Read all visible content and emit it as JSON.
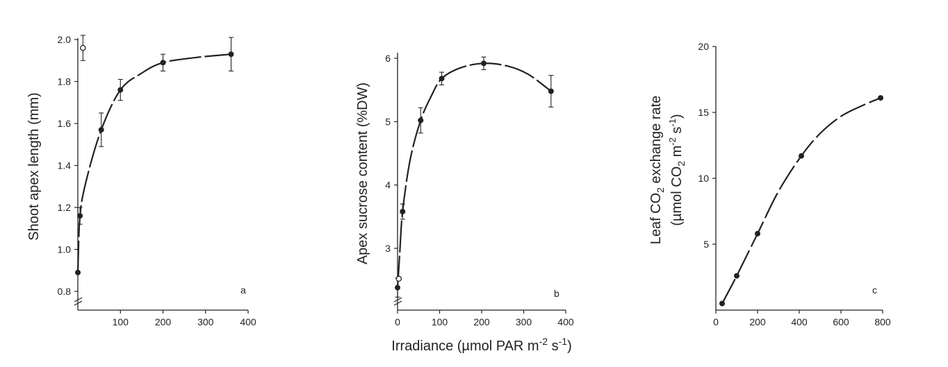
{
  "figure": {
    "shared_xlabel": "Irradiance (µmol PAR m",
    "shared_xlabel_exp1": "-2",
    "shared_xlabel_mid": " s",
    "shared_xlabel_exp2": "-1",
    "shared_xlabel_end": ")"
  },
  "chart_data": [
    {
      "type": "scatter",
      "panel_label": "a",
      "ylabel": "Shoot apex length (mm)",
      "xlim": [
        0,
        400
      ],
      "ylim": [
        0.8,
        2.0
      ],
      "x_ticks": [
        100,
        200,
        300,
        400
      ],
      "y_ticks": [
        0.8,
        1.0,
        1.2,
        1.4,
        1.6,
        1.8,
        2.0
      ],
      "y_tick_labels": [
        "0.8",
        "1.0",
        "1.2",
        "1.4",
        "1.6",
        "1.8",
        "2.0"
      ],
      "axis_break": true,
      "series": [
        {
          "marker": "filled",
          "x": [
            0,
            5,
            55,
            100,
            200,
            360
          ],
          "y": [
            0.89,
            1.16,
            1.57,
            1.76,
            1.89,
            1.93
          ],
          "err": [
            0,
            0.04,
            0.08,
            0.05,
            0.04,
            0.08
          ]
        },
        {
          "marker": "open",
          "x": [
            12
          ],
          "y": [
            1.96
          ],
          "err": [
            0.06
          ]
        }
      ],
      "curve": {
        "x": [
          0,
          5,
          20,
          55,
          100,
          150,
          200,
          280,
          360
        ],
        "y": [
          0.89,
          1.16,
          1.33,
          1.57,
          1.76,
          1.84,
          1.89,
          1.915,
          1.93
        ]
      }
    },
    {
      "type": "scatter",
      "panel_label": "b",
      "ylabel": "Apex sucrose content (%DW)",
      "xlim": [
        0,
        400
      ],
      "ylim": [
        2.2,
        6.0
      ],
      "x_ticks": [
        0,
        100,
        200,
        300,
        400
      ],
      "y_ticks": [
        3,
        4,
        5,
        6
      ],
      "y_tick_labels": [
        "3",
        "4",
        "5",
        "6"
      ],
      "axis_break": true,
      "series": [
        {
          "marker": "filled",
          "x": [
            0,
            12,
            55,
            105,
            205,
            365
          ],
          "y": [
            2.38,
            3.58,
            5.02,
            5.68,
            5.92,
            5.48
          ],
          "err": [
            0.15,
            0.12,
            0.2,
            0.1,
            0.1,
            0.25
          ]
        },
        {
          "marker": "open",
          "x": [
            3
          ],
          "y": [
            2.52
          ],
          "err": [
            0
          ]
        }
      ],
      "curve": {
        "x": [
          0,
          5,
          12,
          30,
          55,
          80,
          105,
          150,
          205,
          260,
          310,
          365
        ],
        "y": [
          2.38,
          2.9,
          3.58,
          4.4,
          5.02,
          5.4,
          5.68,
          5.85,
          5.92,
          5.88,
          5.75,
          5.48
        ]
      }
    },
    {
      "type": "scatter",
      "panel_label": "c",
      "ylabel": "Leaf CO",
      "ylabel_sub": "2",
      "ylabel_rest": " exchange rate",
      "ylabel2": "(µmol CO",
      "ylabel2_sub": "2",
      "ylabel2_mid": " m",
      "ylabel2_exp1": "-2",
      "ylabel2_mid2": " s",
      "ylabel2_exp2": "-1",
      "ylabel2_end": ")",
      "xlim": [
        0,
        800
      ],
      "ylim": [
        0,
        20
      ],
      "x_ticks": [
        0,
        200,
        400,
        600,
        800
      ],
      "y_ticks": [
        5,
        10,
        15,
        20
      ],
      "y_tick_labels": [
        "5",
        "10",
        "15",
        "20"
      ],
      "axis_break": false,
      "series": [
        {
          "marker": "filled",
          "x": [
            30,
            100,
            200,
            410,
            790
          ],
          "y": [
            0.5,
            2.6,
            5.8,
            11.7,
            16.1
          ],
          "err": [
            0,
            0,
            0,
            0,
            0
          ]
        }
      ],
      "curve": {
        "x": [
          30,
          100,
          200,
          300,
          410,
          500,
          600,
          700,
          790
        ],
        "y": [
          0.5,
          2.6,
          5.8,
          9.0,
          11.7,
          13.4,
          14.7,
          15.5,
          16.1
        ]
      }
    }
  ]
}
